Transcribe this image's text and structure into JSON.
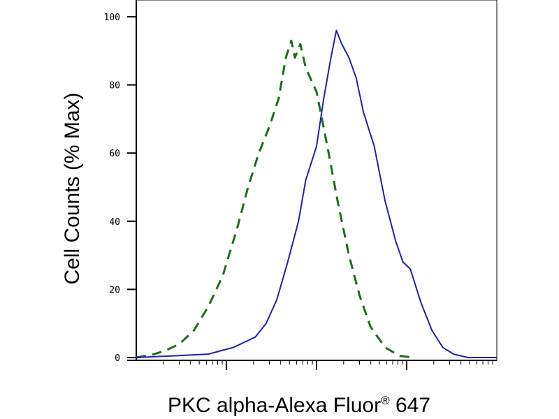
{
  "chart_data": {
    "type": "line",
    "title": "",
    "xlabel_main": "PKC alpha-Alexa Fluor",
    "xlabel_sup": "®",
    "xlabel_tail": " 647",
    "ylabel": "Cell Counts (% Max)",
    "x_scale": "log",
    "ylim": [
      0,
      100
    ],
    "yticks": [
      "0",
      "20",
      "40",
      "60",
      "80",
      "100"
    ],
    "ytick_values": [
      0,
      20,
      40,
      60,
      80,
      100
    ],
    "grid": false,
    "legend": "none",
    "series": [
      {
        "style": "dashed",
        "color": "#1e6b1e",
        "points": [
          [
            0.0,
            0
          ],
          [
            0.05,
            1
          ],
          [
            0.08,
            2
          ],
          [
            0.12,
            4
          ],
          [
            0.16,
            8
          ],
          [
            0.2,
            15
          ],
          [
            0.24,
            24
          ],
          [
            0.28,
            38
          ],
          [
            0.31,
            50
          ],
          [
            0.34,
            60
          ],
          [
            0.37,
            68
          ],
          [
            0.395,
            76
          ],
          [
            0.415,
            88
          ],
          [
            0.43,
            93
          ],
          [
            0.44,
            88
          ],
          [
            0.455,
            92
          ],
          [
            0.47,
            85
          ],
          [
            0.5,
            78
          ],
          [
            0.53,
            62
          ],
          [
            0.56,
            45
          ],
          [
            0.59,
            30
          ],
          [
            0.62,
            18
          ],
          [
            0.65,
            9
          ],
          [
            0.69,
            3
          ],
          [
            0.73,
            0.5
          ],
          [
            0.77,
            0
          ]
        ]
      },
      {
        "style": "solid",
        "color": "#1f1fb4",
        "points": [
          [
            0.0,
            0
          ],
          [
            0.1,
            0.5
          ],
          [
            0.2,
            1
          ],
          [
            0.27,
            3
          ],
          [
            0.33,
            6
          ],
          [
            0.36,
            10
          ],
          [
            0.39,
            17
          ],
          [
            0.42,
            28
          ],
          [
            0.45,
            40
          ],
          [
            0.47,
            52
          ],
          [
            0.5,
            62
          ],
          [
            0.52,
            76
          ],
          [
            0.54,
            88
          ],
          [
            0.555,
            96
          ],
          [
            0.57,
            92
          ],
          [
            0.59,
            88
          ],
          [
            0.61,
            82
          ],
          [
            0.63,
            72
          ],
          [
            0.66,
            62
          ],
          [
            0.69,
            46
          ],
          [
            0.72,
            34
          ],
          [
            0.74,
            28
          ],
          [
            0.76,
            26
          ],
          [
            0.79,
            16
          ],
          [
            0.82,
            8
          ],
          [
            0.85,
            3
          ],
          [
            0.88,
            1
          ],
          [
            0.92,
            0
          ],
          [
            1.0,
            0
          ]
        ]
      }
    ]
  }
}
